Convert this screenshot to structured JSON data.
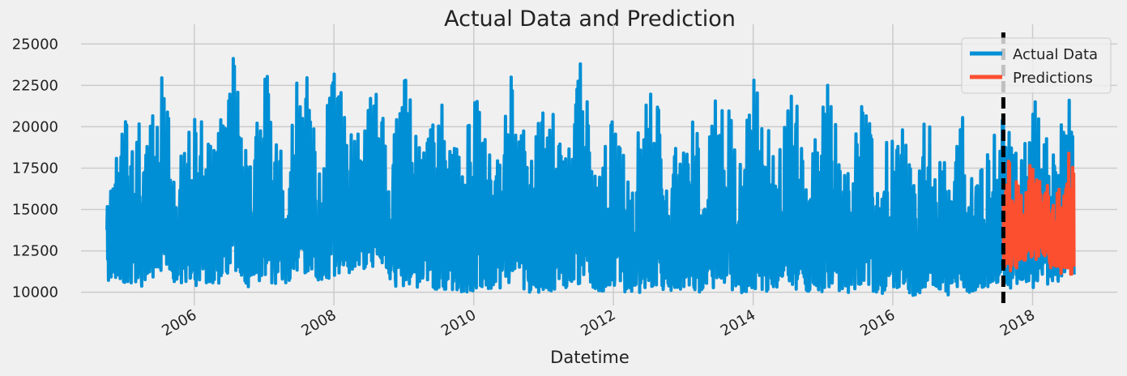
{
  "chart_data": {
    "type": "line",
    "title": "Actual Data and Prediction",
    "xlabel": "Datetime",
    "ylabel": "",
    "x_range": [
      "2004-10-01",
      "2018-08-03"
    ],
    "ylim": [
      9200,
      25700
    ],
    "grid": true,
    "legend_position": "top-right",
    "y_ticks": [
      10000,
      12500,
      15000,
      17500,
      20000,
      22500,
      25000
    ],
    "y_tick_labels": [
      "10000",
      "12500",
      "15000",
      "17500",
      "20000",
      "22500",
      "25000"
    ],
    "x_ticks": [
      "2006-01-01",
      "2008-01-01",
      "2010-01-01",
      "2012-01-01",
      "2014-01-01",
      "2016-01-01",
      "2018-01-01"
    ],
    "x_tick_labels": [
      "2006",
      "2008",
      "2010",
      "2012",
      "2014",
      "2016",
      "2018"
    ],
    "split_date": "2017-08-01",
    "series": [
      {
        "name": "Actual Data",
        "color": "#008fd5",
        "x": [
          "2004-10-01",
          "2005-01-15",
          "2005-04-15",
          "2005-07-20",
          "2005-10-15",
          "2006-01-15",
          "2006-04-15",
          "2006-07-20",
          "2006-10-15",
          "2007-01-15",
          "2007-04-15",
          "2007-07-20",
          "2007-10-15",
          "2008-01-15",
          "2008-04-15",
          "2008-07-20",
          "2008-10-15",
          "2009-01-15",
          "2009-04-15",
          "2009-07-20",
          "2009-10-15",
          "2010-01-15",
          "2010-04-15",
          "2010-07-20",
          "2010-10-15",
          "2011-01-15",
          "2011-04-15",
          "2011-07-20",
          "2011-10-15",
          "2012-01-15",
          "2012-04-15",
          "2012-07-20",
          "2012-10-15",
          "2013-01-15",
          "2013-04-15",
          "2013-07-20",
          "2013-10-15",
          "2014-01-15",
          "2014-04-15",
          "2014-07-20",
          "2014-10-15",
          "2015-01-15",
          "2015-04-15",
          "2015-07-20",
          "2015-10-15",
          "2016-01-15",
          "2016-04-15",
          "2016-07-20",
          "2016-10-15",
          "2017-01-15",
          "2017-04-15",
          "2017-07-20",
          "2017-10-15",
          "2018-01-15",
          "2018-04-15",
          "2018-07-20",
          "2018-08-03"
        ],
        "min": [
          10500,
          10600,
          10300,
          11000,
          10400,
          10400,
          10500,
          10300,
          10300,
          10600,
          10400,
          11200,
          10700,
          11000,
          11200,
          11400,
          10400,
          10300,
          10100,
          10200,
          10000,
          10000,
          10100,
          10500,
          10000,
          10000,
          10200,
          10600,
          10000,
          10000,
          9800,
          10300,
          10100,
          10100,
          10000,
          10500,
          9900,
          10000,
          10100,
          10300,
          9800,
          10000,
          9800,
          10400,
          9900,
          9900,
          9800,
          10300,
          9800,
          10000,
          10000,
          10300,
          10200,
          10200,
          10400,
          11000,
          10800
        ],
        "max": [
          16500,
          22600,
          19000,
          23900,
          18500,
          21000,
          18500,
          24900,
          18300,
          24400,
          18800,
          25000,
          18800,
          24400,
          19600,
          23900,
          18500,
          23500,
          18800,
          22000,
          18200,
          22800,
          18600,
          23400,
          18000,
          22900,
          18500,
          24600,
          17800,
          21200,
          18600,
          23300,
          17600,
          22000,
          18400,
          23800,
          17800,
          24500,
          18500,
          24500,
          17700,
          24800,
          18000,
          22800,
          17600,
          22100,
          17500,
          22600,
          17800,
          21300,
          17600,
          21600,
          18500,
          23000,
          18700,
          22800,
          20300
        ]
      },
      {
        "name": "Predictions",
        "color": "#fc4f30",
        "x": [
          "2017-08-01",
          "2017-09-15",
          "2017-11-01",
          "2017-12-15",
          "2018-01-15",
          "2018-02-15",
          "2018-03-15",
          "2018-04-15",
          "2018-05-15",
          "2018-06-15",
          "2018-07-15",
          "2018-08-03"
        ],
        "min": [
          11500,
          11200,
          11800,
          12000,
          11900,
          12200,
          11800,
          11200,
          11000,
          11200,
          11000,
          11200
        ],
        "max": [
          18800,
          17800,
          16500,
          17900,
          18000,
          17600,
          17000,
          15800,
          16500,
          18100,
          18900,
          18500
        ]
      }
    ]
  }
}
